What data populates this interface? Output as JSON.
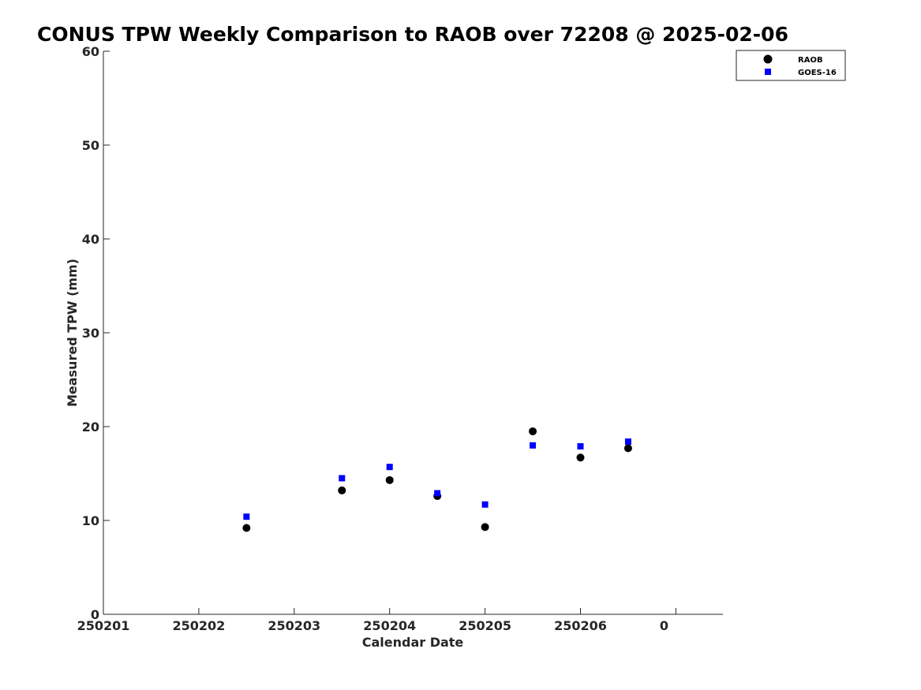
{
  "chart_data": {
    "type": "scatter",
    "title": "CONUS TPW Weekly Comparison to RAOB over 72208 @ 2025-02-06",
    "xlabel": "Calendar Date",
    "ylabel": "Measured TPW (mm)",
    "x_ticks": [
      "250201",
      "250202",
      "250203",
      "250204",
      "250205",
      "250206",
      "0"
    ],
    "y_ticks": [
      "0",
      "10",
      "20",
      "30",
      "40",
      "50",
      "60"
    ],
    "ylim": [
      0,
      60
    ],
    "grid": false,
    "legend_position": "top-right",
    "x": [
      "250202.5",
      "250203.5",
      "250204",
      "250204.5",
      "250205",
      "250205.5",
      "250206",
      "250206.5"
    ],
    "series": [
      {
        "name": "RAOB",
        "marker": "circle",
        "color": "#000000",
        "values": [
          9.2,
          13.2,
          14.3,
          12.6,
          9.3,
          19.5,
          16.7,
          17.7
        ]
      },
      {
        "name": "GOES-16",
        "marker": "square",
        "color": "#0000ff",
        "values": [
          10.4,
          14.5,
          15.7,
          12.9,
          11.7,
          18.0,
          17.9,
          18.4
        ]
      }
    ]
  }
}
